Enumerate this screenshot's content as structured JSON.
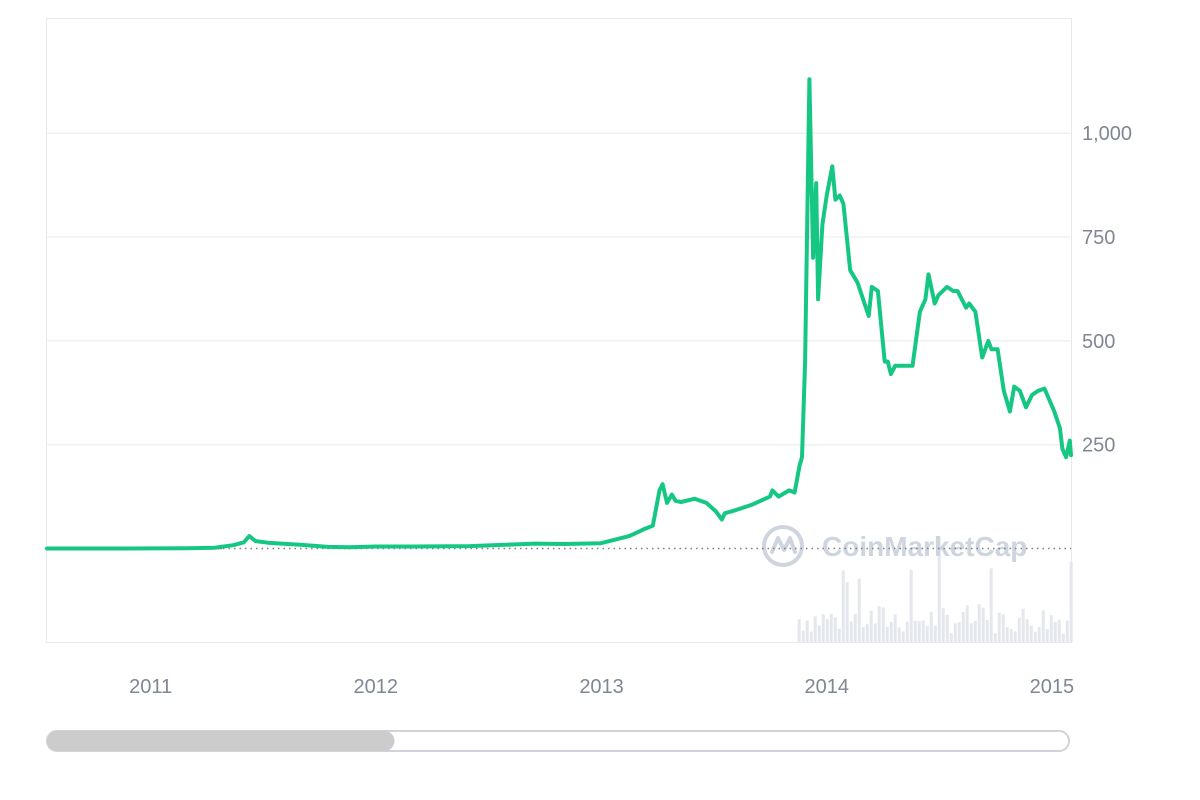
{
  "chart_data": {
    "type": "line",
    "title": "",
    "xlabel": "",
    "ylabel": "",
    "x_ticks": [
      "2011",
      "2012",
      "2013",
      "2014",
      "2015"
    ],
    "x_tick_dates": [
      "2011-01-01",
      "2012-01-01",
      "2013-01-01",
      "2014-01-01",
      "2015-01-01"
    ],
    "xlim": [
      "2010-07-17",
      "2015-02-01"
    ],
    "y_ticks": [
      "250",
      "500",
      "750",
      "1,000"
    ],
    "y_tick_values": [
      250,
      500,
      750,
      1000
    ],
    "ylim": [
      -225,
      1275
    ],
    "grid": true,
    "legend": "none",
    "baseline": 0,
    "series": [
      {
        "x": [
          "2010-07-17",
          "2010-10-01",
          "2011-01-01",
          "2011-03-01",
          "2011-04-15",
          "2011-05-15",
          "2011-06-01",
          "2011-06-10",
          "2011-06-20",
          "2011-07-10",
          "2011-08-01",
          "2011-09-01",
          "2011-10-15",
          "2011-11-20",
          "2012-01-01",
          "2012-03-01",
          "2012-06-01",
          "2012-08-15",
          "2012-09-15",
          "2012-11-01",
          "2012-12-31",
          "2013-02-15",
          "2013-03-10",
          "2013-03-25",
          "2013-04-05",
          "2013-04-10",
          "2013-04-17",
          "2013-04-25",
          "2013-05-01",
          "2013-05-10",
          "2013-06-01",
          "2013-06-20",
          "2013-07-05",
          "2013-07-15",
          "2013-07-20",
          "2013-08-01",
          "2013-09-01",
          "2013-10-01",
          "2013-10-05",
          "2013-10-15",
          "2013-11-01",
          "2013-11-10",
          "2013-11-18",
          "2013-11-22",
          "2013-11-27",
          "2013-12-04",
          "2013-12-10",
          "2013-12-15",
          "2013-12-18",
          "2013-12-25",
          "2014-01-01",
          "2014-01-10",
          "2014-01-15",
          "2014-01-22",
          "2014-01-28",
          "2014-02-08",
          "2014-02-20",
          "2014-03-01",
          "2014-03-10",
          "2014-03-15",
          "2014-03-25",
          "2014-04-05",
          "2014-04-10",
          "2014-04-15",
          "2014-04-22",
          "2014-05-15",
          "2014-05-20",
          "2014-06-01",
          "2014-06-10",
          "2014-06-15",
          "2014-06-25",
          "2014-07-01",
          "2014-07-15",
          "2014-07-25",
          "2014-08-01",
          "2014-08-15",
          "2014-08-20",
          "2014-08-30",
          "2014-09-10",
          "2014-09-20",
          "2014-09-25",
          "2014-10-05",
          "2014-10-15",
          "2014-10-25",
          "2014-11-01",
          "2014-11-10",
          "2014-11-20",
          "2014-11-30",
          "2014-12-10",
          "2014-12-20",
          "2015-01-05",
          "2015-01-14",
          "2015-01-18",
          "2015-01-24",
          "2015-01-30",
          "2015-02-01"
        ],
        "y": [
          0.05,
          0.1,
          0.3,
          0.9,
          2,
          8,
          15,
          30,
          18,
          14,
          12,
          9,
          4,
          3,
          5,
          5,
          6,
          10,
          12,
          11,
          13,
          30,
          46,
          55,
          140,
          155,
          110,
          130,
          115,
          112,
          120,
          110,
          90,
          70,
          85,
          90,
          105,
          125,
          140,
          125,
          140,
          135,
          200,
          220,
          450,
          1130,
          700,
          880,
          600,
          780,
          850,
          920,
          840,
          850,
          830,
          670,
          640,
          600,
          560,
          630,
          620,
          450,
          450,
          420,
          440,
          440,
          440,
          570,
          600,
          660,
          590,
          610,
          630,
          620,
          620,
          580,
          590,
          570,
          460,
          500,
          480,
          480,
          380,
          330,
          390,
          380,
          340,
          370,
          380,
          385,
          330,
          290,
          240,
          220,
          260,
          225
        ]
      }
    ]
  },
  "colors": {
    "line": "#16c784",
    "grid": "#eef0f3",
    "tick_text": "#7f8794",
    "baseline_dots": "#7a7f87",
    "baseline_segment": "#ea3943",
    "volume": "#e4e8ee",
    "watermark": "#cdd3dd",
    "scroll_thumb": "#cccccc",
    "scroll_track_border": "#d0d4da"
  },
  "watermark": {
    "text": "CoinMarketCap",
    "icon": "coinmarketcap-logo-icon"
  },
  "navigator": {
    "visible_fraction": 0.34
  }
}
